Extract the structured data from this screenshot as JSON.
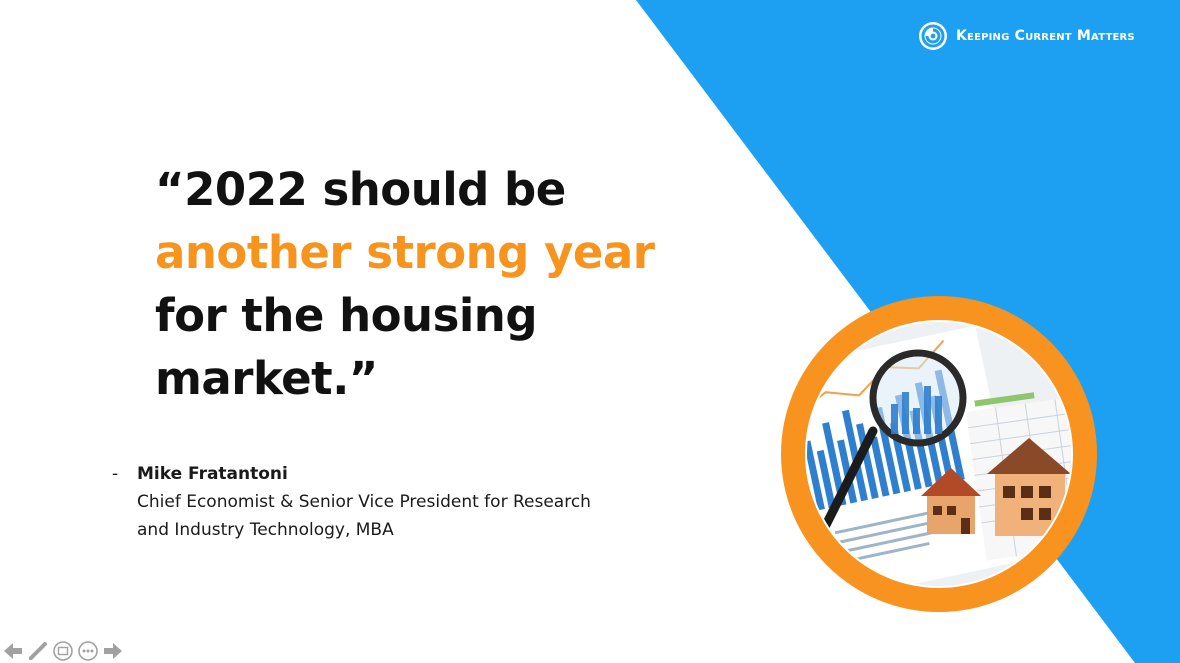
{
  "brand": {
    "name": "Keeping Current Matters",
    "logo_icon": "kcm-swirl-logo-icon"
  },
  "colors": {
    "accent_blue": "#1ea0f2",
    "accent_orange": "#f7941d",
    "text_dark": "#111111"
  },
  "quote": {
    "line1": "“2022 should be",
    "line2_highlight": "another strong year",
    "line3": "for the housing",
    "line4": "market.”"
  },
  "attribution": {
    "dash": "-",
    "name": "Mike Fratantoni",
    "title_line1": "Chief Economist & Senior Vice President for Research",
    "title_line2": "and Industry Technology, MBA"
  },
  "image": {
    "subject": "magnifying glass over bar charts with small wooden houses"
  },
  "toolbar": {
    "icons": [
      "arrow-left-icon",
      "pen-icon",
      "slides-icon",
      "more-icon",
      "arrow-right-icon"
    ]
  }
}
